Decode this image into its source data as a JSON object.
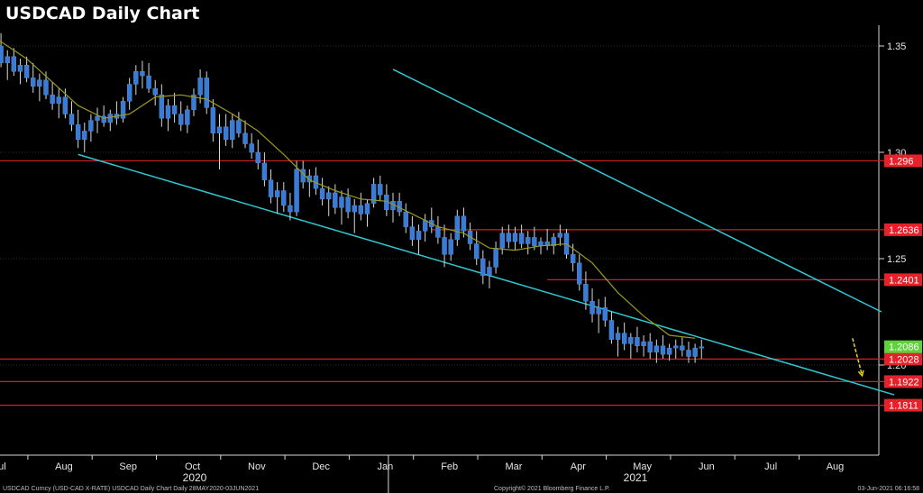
{
  "chart_data": {
    "type": "candlestick",
    "title": "USDCAD Daily Chart",
    "colors": {
      "background": "#000000",
      "candle": "#3a7bd5",
      "wick": "#d8d8d8",
      "channel": "#2ec8d2",
      "level": "#d0202a",
      "level_label_bg": "#e8202a",
      "last_label_bg": "#5fd13a",
      "moving_average": "#9a9a1e",
      "projection": "#e6d21e"
    },
    "x_axis": {
      "ticks": [
        "Jul",
        "Aug",
        "Sep",
        "Oct",
        "Nov",
        "Dec",
        "Jan",
        "Feb",
        "Mar",
        "Apr",
        "May",
        "Jun",
        "Jul",
        "Aug"
      ],
      "years": [
        "2020",
        "2021"
      ]
    },
    "y_axis": {
      "ticks": [
        "1.20",
        "1.25",
        "1.30",
        "1.35"
      ],
      "range": [
        1.155,
        1.365
      ]
    },
    "levels": [
      {
        "value": 1.296,
        "label": "1.296"
      },
      {
        "value": 1.2636,
        "label": "1.2636"
      },
      {
        "value": 1.2401,
        "label": "1.2401"
      },
      {
        "value": 1.2028,
        "label": "1.2028"
      },
      {
        "value": 1.1922,
        "label": "1.1922"
      },
      {
        "value": 1.1811,
        "label": "1.1811"
      }
    ],
    "last_price": {
      "value": 1.2086,
      "label": "1.2086"
    },
    "channel": {
      "upper": [
        [
          -2.3,
          1.339
        ],
        [
          5.3,
          1.225
        ]
      ],
      "lower": [
        [
          -7.2,
          1.299
        ],
        [
          5.5,
          1.186
        ]
      ]
    },
    "projection": [
      [
        4.85,
        1.2126
      ],
      [
        5.0,
        1.195
      ]
    ],
    "candles": [
      [
        -9.4,
        1.357,
        1.361,
        1.351,
        1.356
      ],
      [
        -9.3,
        1.356,
        1.36,
        1.35,
        1.354
      ],
      [
        -9.2,
        1.354,
        1.359,
        1.348,
        1.357
      ],
      [
        -9.1,
        1.357,
        1.36,
        1.352,
        1.353
      ],
      [
        -9.0,
        1.353,
        1.359,
        1.35,
        1.358
      ],
      [
        -8.9,
        1.358,
        1.361,
        1.352,
        1.354
      ],
      [
        -8.8,
        1.354,
        1.36,
        1.349,
        1.356
      ],
      [
        -8.7,
        1.356,
        1.359,
        1.351,
        1.352
      ],
      [
        -8.6,
        1.352,
        1.358,
        1.347,
        1.355
      ],
      [
        -8.5,
        1.355,
        1.359,
        1.349,
        1.35
      ],
      [
        -8.4,
        1.35,
        1.356,
        1.34,
        1.342
      ],
      [
        -8.3,
        1.342,
        1.348,
        1.334,
        1.345
      ],
      [
        -8.2,
        1.345,
        1.349,
        1.336,
        1.338
      ],
      [
        -8.1,
        1.338,
        1.344,
        1.332,
        1.341
      ],
      [
        -8.0,
        1.341,
        1.345,
        1.333,
        1.335
      ],
      [
        -7.9,
        1.335,
        1.342,
        1.328,
        1.331
      ],
      [
        -7.8,
        1.331,
        1.337,
        1.324,
        1.334
      ],
      [
        -7.7,
        1.334,
        1.338,
        1.325,
        1.327
      ],
      [
        -7.6,
        1.327,
        1.333,
        1.32,
        1.323
      ],
      [
        -7.5,
        1.323,
        1.33,
        1.316,
        1.326
      ],
      [
        -7.4,
        1.326,
        1.33,
        1.316,
        1.318
      ],
      [
        -7.3,
        1.318,
        1.324,
        1.31,
        1.313
      ],
      [
        -7.2,
        1.313,
        1.32,
        1.302,
        1.306
      ],
      [
        -7.1,
        1.306,
        1.314,
        1.3,
        1.31
      ],
      [
        -7.0,
        1.31,
        1.318,
        1.305,
        1.315
      ],
      [
        -6.9,
        1.315,
        1.321,
        1.309,
        1.317
      ],
      [
        -6.8,
        1.317,
        1.322,
        1.312,
        1.314
      ],
      [
        -6.7,
        1.314,
        1.32,
        1.31,
        1.318
      ],
      [
        -6.6,
        1.318,
        1.324,
        1.313,
        1.316
      ],
      [
        -6.5,
        1.316,
        1.326,
        1.314,
        1.324
      ],
      [
        -6.4,
        1.324,
        1.335,
        1.32,
        1.332
      ],
      [
        -6.3,
        1.332,
        1.341,
        1.327,
        1.338
      ],
      [
        -6.2,
        1.338,
        1.343,
        1.33,
        1.336
      ],
      [
        -6.1,
        1.336,
        1.342,
        1.328,
        1.33
      ],
      [
        -6.0,
        1.33,
        1.334,
        1.322,
        1.327
      ],
      [
        -5.9,
        1.327,
        1.332,
        1.312,
        1.316
      ],
      [
        -5.8,
        1.316,
        1.325,
        1.31,
        1.322
      ],
      [
        -5.7,
        1.322,
        1.328,
        1.314,
        1.318
      ],
      [
        -5.6,
        1.318,
        1.324,
        1.31,
        1.313
      ],
      [
        -5.5,
        1.313,
        1.322,
        1.309,
        1.32
      ],
      [
        -5.4,
        1.32,
        1.33,
        1.317,
        1.327
      ],
      [
        -5.3,
        1.327,
        1.339,
        1.323,
        1.335
      ],
      [
        -5.2,
        1.335,
        1.338,
        1.318,
        1.321
      ],
      [
        -5.1,
        1.321,
        1.325,
        1.305,
        1.309
      ],
      [
        -5.0,
        1.309,
        1.318,
        1.292,
        1.312
      ],
      [
        -4.9,
        1.312,
        1.318,
        1.303,
        1.306
      ],
      [
        -4.8,
        1.306,
        1.318,
        1.302,
        1.315
      ],
      [
        -4.7,
        1.315,
        1.319,
        1.307,
        1.309
      ],
      [
        -4.6,
        1.309,
        1.315,
        1.302,
        1.304
      ],
      [
        -4.5,
        1.304,
        1.309,
        1.297,
        1.3
      ],
      [
        -4.4,
        1.3,
        1.306,
        1.292,
        1.295
      ],
      [
        -4.3,
        1.295,
        1.3,
        1.284,
        1.287
      ],
      [
        -4.2,
        1.287,
        1.292,
        1.276,
        1.279
      ],
      [
        -4.1,
        1.279,
        1.286,
        1.271,
        1.282
      ],
      [
        -4.0,
        1.282,
        1.286,
        1.272,
        1.275
      ],
      [
        -3.9,
        1.275,
        1.281,
        1.268,
        1.272
      ],
      [
        -3.8,
        1.272,
        1.296,
        1.27,
        1.292
      ],
      [
        -3.7,
        1.292,
        1.296,
        1.283,
        1.286
      ],
      [
        -3.6,
        1.286,
        1.292,
        1.279,
        1.289
      ],
      [
        -3.5,
        1.289,
        1.293,
        1.28,
        1.283
      ],
      [
        -3.4,
        1.283,
        1.288,
        1.275,
        1.278
      ],
      [
        -3.3,
        1.278,
        1.284,
        1.27,
        1.281
      ],
      [
        -3.2,
        1.281,
        1.285,
        1.271,
        1.274
      ],
      [
        -3.1,
        1.274,
        1.282,
        1.266,
        1.279
      ],
      [
        -3.0,
        1.279,
        1.283,
        1.269,
        1.272
      ],
      [
        -2.9,
        1.272,
        1.278,
        1.262,
        1.275
      ],
      [
        -2.8,
        1.275,
        1.281,
        1.268,
        1.271
      ],
      [
        -2.7,
        1.271,
        1.278,
        1.265,
        1.276
      ],
      [
        -2.6,
        1.276,
        1.288,
        1.274,
        1.285
      ],
      [
        -2.5,
        1.285,
        1.289,
        1.277,
        1.28
      ],
      [
        -2.4,
        1.28,
        1.285,
        1.27,
        1.273
      ],
      [
        -2.3,
        1.273,
        1.281,
        1.267,
        1.277
      ],
      [
        -2.2,
        1.277,
        1.281,
        1.27,
        1.272
      ],
      [
        -2.1,
        1.272,
        1.276,
        1.262,
        1.265
      ],
      [
        -2.0,
        1.265,
        1.27,
        1.256,
        1.259
      ],
      [
        -1.9,
        1.259,
        1.266,
        1.252,
        1.263
      ],
      [
        -1.8,
        1.263,
        1.271,
        1.258,
        1.268
      ],
      [
        -1.7,
        1.268,
        1.274,
        1.262,
        1.265
      ],
      [
        -1.6,
        1.265,
        1.27,
        1.257,
        1.26
      ],
      [
        -1.5,
        1.26,
        1.266,
        1.246,
        1.252
      ],
      [
        -1.4,
        1.252,
        1.262,
        1.249,
        1.259
      ],
      [
        -1.3,
        1.259,
        1.273,
        1.256,
        1.27
      ],
      [
        -1.2,
        1.27,
        1.274,
        1.26,
        1.263
      ],
      [
        -1.1,
        1.263,
        1.267,
        1.254,
        1.257
      ],
      [
        -1.0,
        1.257,
        1.263,
        1.247,
        1.25
      ],
      [
        -0.9,
        1.25,
        1.254,
        1.238,
        1.242
      ],
      [
        -0.8,
        1.242,
        1.249,
        1.236,
        1.246
      ],
      [
        -0.7,
        1.246,
        1.258,
        1.243,
        1.255
      ],
      [
        -0.6,
        1.255,
        1.265,
        1.252,
        1.262
      ],
      [
        -0.5,
        1.262,
        1.266,
        1.255,
        1.258
      ],
      [
        -0.4,
        1.258,
        1.265,
        1.254,
        1.262
      ],
      [
        -0.3,
        1.262,
        1.266,
        1.255,
        1.257
      ],
      [
        -0.2,
        1.257,
        1.263,
        1.252,
        1.26
      ],
      [
        -0.1,
        1.26,
        1.265,
        1.254,
        1.256
      ],
      [
        0.0,
        1.256,
        1.26,
        1.252,
        1.258
      ],
      [
        0.1,
        1.258,
        1.264,
        1.254,
        1.256
      ],
      [
        0.2,
        1.256,
        1.262,
        1.252,
        1.26
      ],
      [
        0.3,
        1.26,
        1.266,
        1.256,
        1.262
      ],
      [
        0.4,
        1.262,
        1.264,
        1.25,
        1.252
      ],
      [
        0.5,
        1.252,
        1.257,
        1.244,
        1.248
      ],
      [
        0.6,
        1.248,
        1.252,
        1.235,
        1.238
      ],
      [
        0.7,
        1.238,
        1.244,
        1.226,
        1.23
      ],
      [
        0.8,
        1.23,
        1.236,
        1.22,
        1.224
      ],
      [
        0.9,
        1.224,
        1.231,
        1.215,
        1.227
      ],
      [
        1.0,
        1.227,
        1.232,
        1.218,
        1.221
      ],
      [
        1.1,
        1.221,
        1.225,
        1.21,
        1.212
      ],
      [
        1.2,
        1.212,
        1.218,
        1.204,
        1.215
      ],
      [
        1.3,
        1.215,
        1.22,
        1.207,
        1.21
      ],
      [
        1.4,
        1.21,
        1.215,
        1.203,
        1.213
      ],
      [
        1.5,
        1.213,
        1.218,
        1.206,
        1.209
      ],
      [
        1.6,
        1.209,
        1.214,
        1.204,
        1.211
      ],
      [
        1.7,
        1.211,
        1.215,
        1.203,
        1.206
      ],
      [
        1.8,
        1.206,
        1.212,
        1.201,
        1.209
      ],
      [
        1.9,
        1.209,
        1.214,
        1.203,
        1.205
      ],
      [
        2.0,
        1.205,
        1.21,
        1.202,
        1.208
      ],
      [
        2.1,
        1.208,
        1.212,
        1.203,
        1.209
      ],
      [
        2.2,
        1.209,
        1.213,
        1.204,
        1.207
      ],
      [
        2.3,
        1.207,
        1.211,
        1.201,
        1.204
      ],
      [
        2.4,
        1.204,
        1.21,
        1.201,
        1.208
      ],
      [
        2.5,
        1.208,
        1.212,
        1.203,
        1.2086
      ]
    ],
    "moving_average": [
      [
        -8.8,
        1.357
      ],
      [
        -8.4,
        1.352
      ],
      [
        -8.0,
        1.344
      ],
      [
        -7.6,
        1.333
      ],
      [
        -7.2,
        1.322
      ],
      [
        -6.8,
        1.316
      ],
      [
        -6.4,
        1.318
      ],
      [
        -6.0,
        1.326
      ],
      [
        -5.6,
        1.327
      ],
      [
        -5.2,
        1.325
      ],
      [
        -4.8,
        1.318
      ],
      [
        -4.4,
        1.31
      ],
      [
        -4.0,
        1.299
      ],
      [
        -3.6,
        1.287
      ],
      [
        -3.2,
        1.282
      ],
      [
        -2.8,
        1.278
      ],
      [
        -2.4,
        1.277
      ],
      [
        -2.0,
        1.271
      ],
      [
        -1.6,
        1.265
      ],
      [
        -1.2,
        1.262
      ],
      [
        -0.8,
        1.255
      ],
      [
        -0.4,
        1.254
      ],
      [
        0.0,
        1.256
      ],
      [
        0.4,
        1.257
      ],
      [
        0.8,
        1.248
      ],
      [
        1.2,
        1.234
      ],
      [
        1.6,
        1.223
      ],
      [
        2.0,
        1.214
      ],
      [
        2.4,
        1.2126
      ]
    ],
    "footer": {
      "left": "USDCAD Curncy (USD-CAD X-RATE) USDCAD Daily Chart  Daily 28MAY2020-03JUN2021",
      "center": "Copyright© 2021 Bloomberg Finance L.P.",
      "right": "03-Jun-2021 06:16:58"
    }
  }
}
